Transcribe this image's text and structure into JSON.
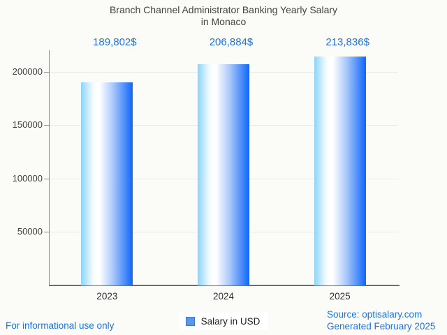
{
  "title": {
    "line1": "Branch Channel Administrator Banking Yearly Salary",
    "line2": "in Monaco"
  },
  "chart_data": {
    "type": "bar",
    "title": "Branch Channel Administrator Banking Yearly Salary in Monaco",
    "categories": [
      "2023",
      "2024",
      "2025"
    ],
    "values": [
      189802,
      206884,
      213836
    ],
    "value_labels": [
      "189,802$",
      "206,884$",
      "213,836$"
    ],
    "series_name": "Salary in USD",
    "xlabel": "",
    "ylabel": "",
    "ylim": [
      0,
      220000
    ],
    "yticks": [
      50000,
      100000,
      150000,
      200000
    ],
    "ytick_labels": [
      "50000",
      "100000",
      "150000",
      "200000"
    ],
    "grid": true,
    "legend_position": "bottom"
  },
  "legend": {
    "label": "Salary in USD"
  },
  "footer": {
    "left_note": "For informational use only",
    "source": "Source: optisalary.com",
    "generated": "Generated February 2025"
  },
  "colors": {
    "accent_blue": "#1a73e8",
    "title_gray": "#424242",
    "bar_gradient_light": "#8ad5fc",
    "bar_gradient_dark": "#0e66fb",
    "legend_swatch": "#5d94e8",
    "gridline": "#e9e9e9",
    "axis_line": "#8a8a8a"
  }
}
